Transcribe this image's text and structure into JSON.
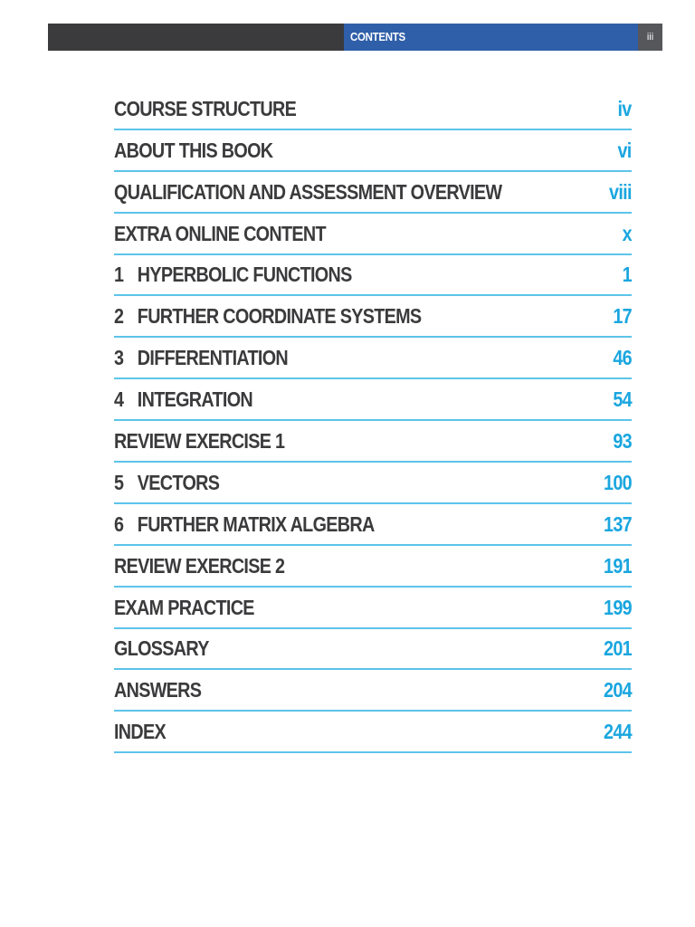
{
  "header": {
    "title": "CONTENTS",
    "page_number": "iii"
  },
  "toc": [
    {
      "number": "",
      "title": "COURSE STRUCTURE",
      "page": "iv"
    },
    {
      "number": "",
      "title": "ABOUT THIS BOOK",
      "page": "vi"
    },
    {
      "number": "",
      "title": "QUALIFICATION AND ASSESSMENT OVERVIEW",
      "page": "viii"
    },
    {
      "number": "",
      "title": "EXTRA ONLINE CONTENT",
      "page": "x"
    },
    {
      "number": "1",
      "title": "HYPERBOLIC FUNCTIONS",
      "page": "1"
    },
    {
      "number": "2",
      "title": "FURTHER COORDINATE SYSTEMS",
      "page": "17"
    },
    {
      "number": "3",
      "title": "DIFFERENTIATION",
      "page": "46"
    },
    {
      "number": "4",
      "title": "INTEGRATION",
      "page": "54"
    },
    {
      "number": "",
      "title": "REVIEW EXERCISE 1",
      "page": "93"
    },
    {
      "number": "5",
      "title": "VECTORS",
      "page": "100"
    },
    {
      "number": "6",
      "title": "FURTHER MATRIX ALGEBRA",
      "page": "137"
    },
    {
      "number": "",
      "title": "REVIEW EXERCISE 2",
      "page": "191"
    },
    {
      "number": "",
      "title": "EXAM PRACTICE",
      "page": "199"
    },
    {
      "number": "",
      "title": "GLOSSARY",
      "page": "201"
    },
    {
      "number": "",
      "title": "ANSWERS",
      "page": "204"
    },
    {
      "number": "",
      "title": "INDEX",
      "page": "244"
    }
  ],
  "colors": {
    "header_dark": "#3b3b3d",
    "header_blue": "#2f5fa8",
    "title_text": "#3b3b3d",
    "page_number": "#1aa6df",
    "rule": "#5cc4ea"
  }
}
